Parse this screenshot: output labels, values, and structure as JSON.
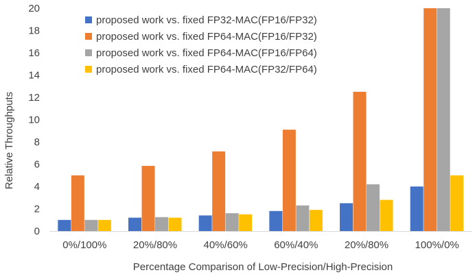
{
  "chart_data": {
    "type": "bar",
    "title": "",
    "xlabel": "Percentage Comparison of Low-Precision/High-Precision",
    "ylabel": "Relative Throughputs",
    "ylim": [
      0,
      20
    ],
    "yticks": [
      "0",
      "2",
      "4",
      "6",
      "8",
      "10",
      "12",
      "14",
      "16",
      "18",
      "20"
    ],
    "grid": false,
    "legend_position": "top-left",
    "categories": [
      "0%/100%",
      "20%/80%",
      "40%/60%",
      "60%/40%",
      "20%/80%",
      "100%/0%"
    ],
    "series": [
      {
        "name": "proposed work vs. fixed FP32-MAC(FP16/FP32)",
        "color": "#4472C4",
        "values": [
          1.0,
          1.2,
          1.4,
          1.8,
          2.5,
          4.0
        ]
      },
      {
        "name": "proposed work vs. fixed FP64-MAC(FP16/FP32)",
        "color": "#ED7D31",
        "values": [
          5.0,
          5.85,
          7.15,
          9.1,
          12.5,
          20.0
        ]
      },
      {
        "name": "proposed work vs. fixed FP64-MAC(FP16/FP64)",
        "color": "#A5A5A5",
        "values": [
          1.0,
          1.25,
          1.6,
          2.3,
          4.2,
          20.0
        ]
      },
      {
        "name": "proposed work vs. fixed FP64-MAC(FP32/FP64)",
        "color": "#FFC000",
        "values": [
          1.0,
          1.2,
          1.5,
          1.9,
          2.8,
          5.0
        ]
      }
    ]
  }
}
